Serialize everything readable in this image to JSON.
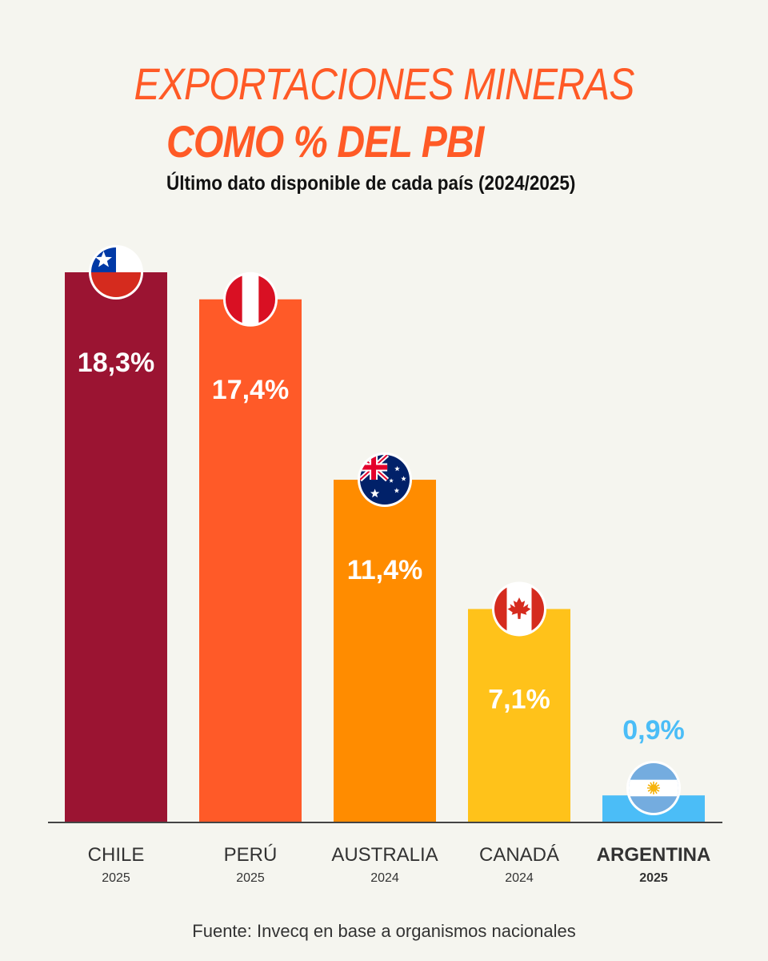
{
  "title_line1": "EXPORTACIONES MINERAS",
  "title_line2": "COMO % DEL PBI",
  "subtitle": "Último dato disponible de cada país (2024/2025)",
  "source": "Fuente: Invecq en base a organismos nacionales",
  "chart_data": {
    "type": "bar",
    "title": "EXPORTACIONES MINERAS COMO % DEL PBI",
    "subtitle": "Último dato disponible de cada país (2024/2025)",
    "categories": [
      "CHILE",
      "PERÚ",
      "AUSTRALIA",
      "CANADÁ",
      "ARGENTINA"
    ],
    "years": [
      "2025",
      "2025",
      "2024",
      "2024",
      "2025"
    ],
    "values": [
      18.3,
      17.4,
      11.4,
      7.1,
      0.9
    ],
    "value_labels": [
      "18,3%",
      "17,4%",
      "11,4%",
      "7,1%",
      "0,9%"
    ],
    "colors": [
      "#9b1432",
      "#ff5a28",
      "#ff8c00",
      "#ffc21a",
      "#4bbdf7"
    ],
    "flags": [
      "chile-flag-icon",
      "peru-flag-icon",
      "australia-flag-icon",
      "canada-flag-icon",
      "argentina-flag-icon"
    ],
    "highlight": "ARGENTINA",
    "ylim": [
      0,
      18.3
    ],
    "grid": false,
    "unit": "%"
  }
}
